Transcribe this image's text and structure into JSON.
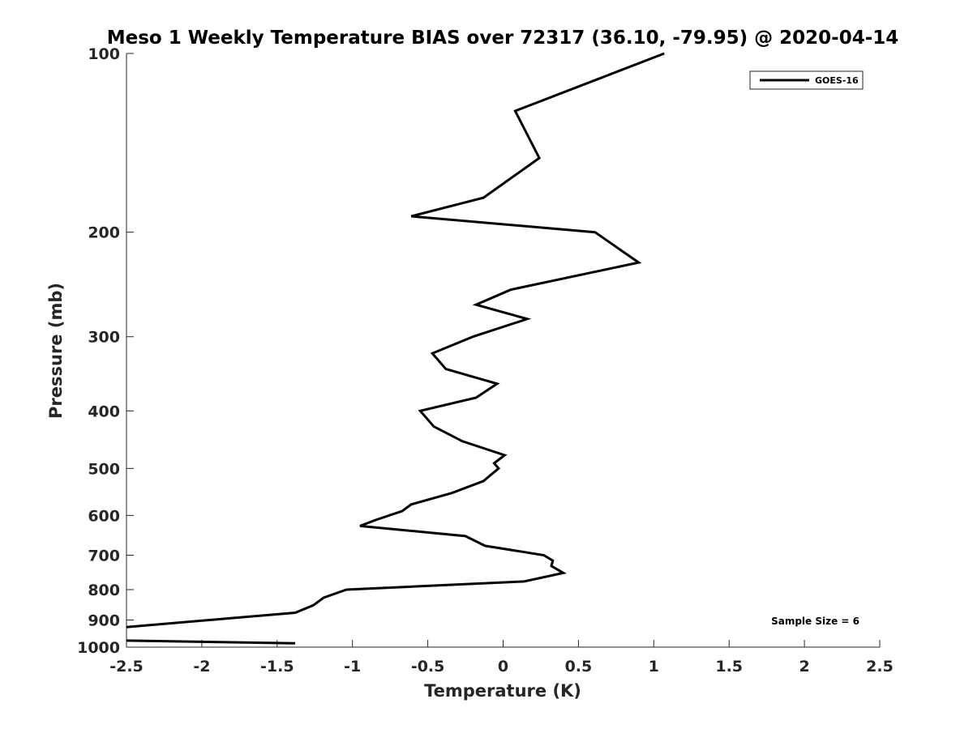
{
  "chart_data": {
    "type": "line",
    "title": "Meso 1 Weekly Temperature BIAS over 72317 (36.10, -79.95) @ 2020-04-14",
    "xlabel": "Temperature (K)",
    "ylabel": "Pressure (mb)",
    "xlim": [
      -2.5,
      2.5
    ],
    "ylim": [
      100,
      1000
    ],
    "y_scale": "log",
    "y_reversed": true,
    "x_ticks": [
      -2.5,
      -2,
      -1.5,
      -1,
      -0.5,
      0,
      0.5,
      1,
      1.5,
      2,
      2.5
    ],
    "x_tick_labels": [
      "-2.5",
      "-2",
      "-1.5",
      "-1",
      "-0.5",
      "0",
      "0.5",
      "1",
      "1.5",
      "2",
      "2.5"
    ],
    "y_ticks": [
      100,
      200,
      300,
      400,
      500,
      600,
      700,
      800,
      900,
      1000
    ],
    "y_tick_labels": [
      "100",
      "200",
      "300",
      "400",
      "500",
      "600",
      "700",
      "800",
      "900",
      "1000"
    ],
    "grid": false,
    "legend_position": "top-right",
    "annotation": "Sample Size = 6",
    "series_color": "#000000",
    "series": [
      {
        "name": "GOES-16",
        "points": [
          {
            "x": 1.07,
            "p": 100
          },
          {
            "x": 0.08,
            "p": 125
          },
          {
            "x": 0.24,
            "p": 150
          },
          {
            "x": -0.13,
            "p": 175
          },
          {
            "x": -0.61,
            "p": 188
          },
          {
            "x": 0.61,
            "p": 200
          },
          {
            "x": 0.9,
            "p": 225
          },
          {
            "x": 0.05,
            "p": 250
          },
          {
            "x": -0.18,
            "p": 265
          },
          {
            "x": 0.16,
            "p": 280
          },
          {
            "x": -0.2,
            "p": 300
          },
          {
            "x": -0.47,
            "p": 320
          },
          {
            "x": -0.38,
            "p": 340
          },
          {
            "x": -0.04,
            "p": 360
          },
          {
            "x": -0.18,
            "p": 380
          },
          {
            "x": -0.55,
            "p": 400
          },
          {
            "x": -0.46,
            "p": 425
          },
          {
            "x": -0.27,
            "p": 450
          },
          {
            "x": 0.01,
            "p": 475
          },
          {
            "x": -0.06,
            "p": 490
          },
          {
            "x": -0.03,
            "p": 500
          },
          {
            "x": -0.13,
            "p": 525
          },
          {
            "x": -0.34,
            "p": 550
          },
          {
            "x": -0.61,
            "p": 575
          },
          {
            "x": -0.67,
            "p": 590
          },
          {
            "x": -0.84,
            "p": 610
          },
          {
            "x": -0.95,
            "p": 625
          },
          {
            "x": -0.25,
            "p": 650
          },
          {
            "x": -0.12,
            "p": 675
          },
          {
            "x": 0.27,
            "p": 700
          },
          {
            "x": 0.33,
            "p": 715
          },
          {
            "x": 0.32,
            "p": 730
          },
          {
            "x": 0.4,
            "p": 750
          },
          {
            "x": 0.14,
            "p": 775
          },
          {
            "x": -1.04,
            "p": 800
          },
          {
            "x": -1.19,
            "p": 825
          },
          {
            "x": -1.26,
            "p": 850
          },
          {
            "x": -1.38,
            "p": 875
          },
          {
            "x": -2.5,
            "p": 925
          },
          {
            "x": null,
            "p": 950
          },
          {
            "x": -2.5,
            "p": 975
          },
          {
            "x": -1.38,
            "p": 985
          }
        ]
      }
    ]
  }
}
